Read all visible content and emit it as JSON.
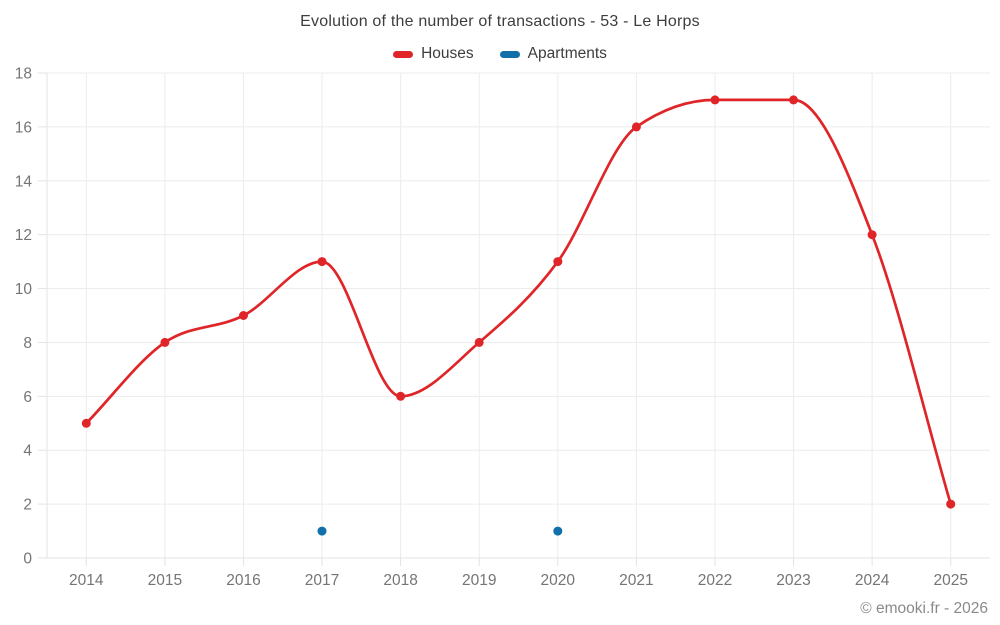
{
  "page": {
    "footer": "© emooki.fr - 2026"
  },
  "chart_data": {
    "type": "line",
    "title": "Evolution of the number of transactions - 53 - Le Horps",
    "categories": [
      "2014",
      "2015",
      "2016",
      "2017",
      "2018",
      "2019",
      "2020",
      "2021",
      "2022",
      "2023",
      "2024",
      "2025"
    ],
    "series": [
      {
        "name": "Houses",
        "color": "#e02528",
        "line_width": 2.7,
        "point_radius": 4.5,
        "values": [
          5,
          8,
          9,
          11,
          6,
          8,
          11,
          16,
          17,
          17,
          12,
          2
        ]
      },
      {
        "name": "Apartments",
        "color": "#1170aa",
        "line_width": 0,
        "point_radius": 4.5,
        "values": [
          null,
          null,
          null,
          1,
          null,
          null,
          1,
          null,
          null,
          null,
          null,
          null
        ]
      }
    ],
    "ylim": [
      0,
      18
    ],
    "ytick_step": 2,
    "grid": true,
    "legend_position": "top",
    "colors": {
      "grid": "#ececec",
      "axis": "#e3e3e3",
      "tick_text": "#757575",
      "title_text": "#3d3d3d",
      "footer_text": "#8a8a8a"
    }
  }
}
